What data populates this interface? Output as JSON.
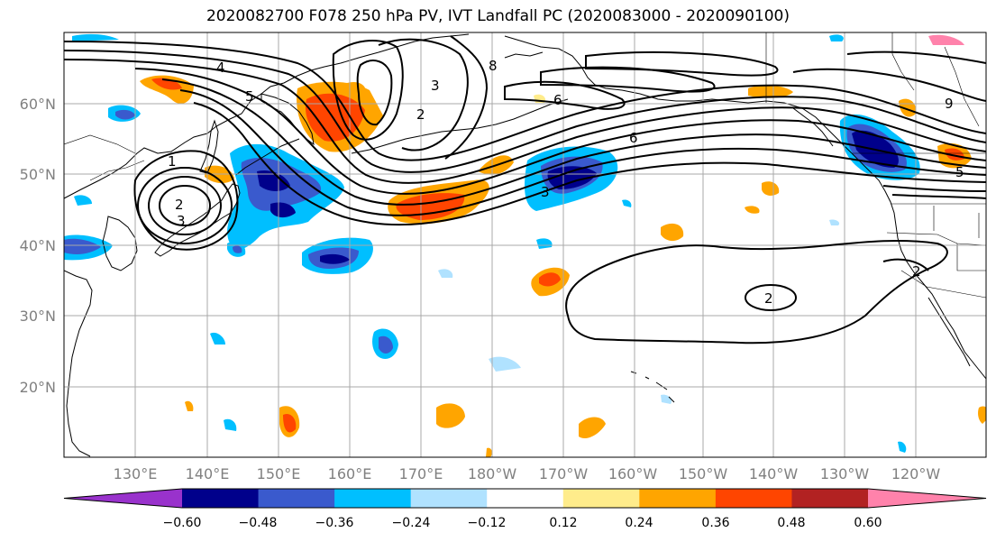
{
  "title": "2020082700 F078 250 hPa PV, IVT Landfall PC (2020083000 - 2020090100)",
  "map": {
    "lon_labels": [
      "130°E",
      "140°E",
      "150°E",
      "160°E",
      "170°E",
      "180°W",
      "170°W",
      "160°W",
      "150°W",
      "140°W",
      "130°W",
      "120°W"
    ],
    "lat_labels": [
      "20°N",
      "30°N",
      "40°N",
      "50°N",
      "60°N"
    ],
    "contour_labels": [
      "1",
      "2",
      "3",
      "3",
      "4",
      "5",
      "6",
      "6",
      "8",
      "9",
      "2",
      "2",
      "2",
      "3",
      "5"
    ]
  },
  "colorbar": {
    "tick_labels": [
      "−0.60",
      "−0.48",
      "−0.36",
      "−0.24",
      "−0.12",
      "0.12",
      "0.24",
      "0.36",
      "0.48",
      "0.60"
    ],
    "colors": [
      "#9932cc",
      "#00008b",
      "#3a5acd",
      "#00bfff",
      "#b0e2ff",
      "#ffffff",
      "#ffec8b",
      "#ffa500",
      "#ff4500",
      "#b22222",
      "#ff82ab"
    ]
  },
  "colors": {
    "grid": "#a8a8a8",
    "tick_text": "#808080"
  }
}
